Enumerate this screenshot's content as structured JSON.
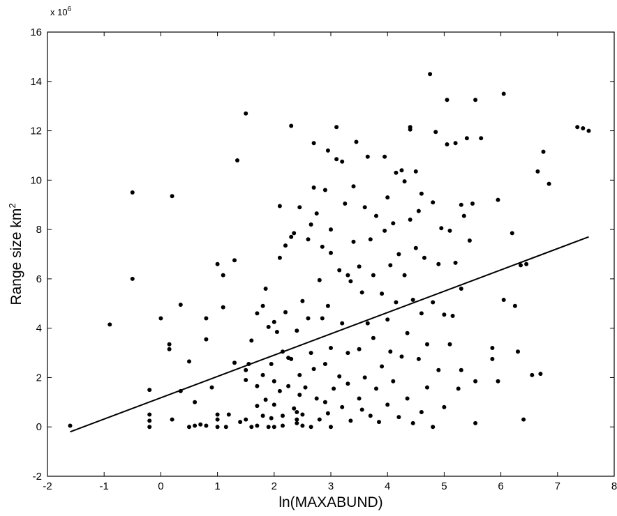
{
  "chart_data": {
    "type": "scatter",
    "title": "",
    "xlabel": "ln(MAXABUND)",
    "ylabel_main": "Range size km",
    "ylabel_sup": "2",
    "ylabel": "Range size km²",
    "y_multiplier_base": "x 10",
    "y_multiplier_exp": "6",
    "xlim": [
      -2,
      8
    ],
    "ylim": [
      -2,
      16
    ],
    "xticks": [
      -2,
      -1,
      0,
      1,
      2,
      3,
      4,
      5,
      6,
      7,
      8
    ],
    "yticks": [
      -2,
      0,
      2,
      4,
      6,
      8,
      10,
      12,
      14,
      16
    ],
    "grid": false,
    "legend": "none",
    "marker_color": "#000000",
    "regression_line": {
      "x": [
        -1.6,
        7.55
      ],
      "y": [
        -0.2,
        7.7
      ]
    },
    "points": [
      [
        -1.6,
        0.05
      ],
      [
        -0.9,
        4.15
      ],
      [
        -0.5,
        9.5
      ],
      [
        -0.5,
        6.0
      ],
      [
        -0.2,
        1.5
      ],
      [
        -0.2,
        0.5
      ],
      [
        -0.2,
        0.25
      ],
      [
        -0.2,
        0.0
      ],
      [
        0.0,
        4.4
      ],
      [
        0.15,
        3.35
      ],
      [
        0.15,
        3.15
      ],
      [
        0.2,
        9.35
      ],
      [
        0.2,
        0.3
      ],
      [
        0.35,
        4.95
      ],
      [
        0.35,
        1.45
      ],
      [
        0.5,
        2.65
      ],
      [
        0.5,
        0.0
      ],
      [
        0.6,
        0.05
      ],
      [
        0.6,
        1.0
      ],
      [
        0.7,
        0.1
      ],
      [
        0.8,
        3.55
      ],
      [
        0.8,
        4.4
      ],
      [
        0.8,
        0.05
      ],
      [
        0.9,
        1.6
      ],
      [
        1.0,
        6.6
      ],
      [
        1.0,
        0.5
      ],
      [
        1.0,
        0.3
      ],
      [
        1.0,
        0.0
      ],
      [
        1.1,
        6.15
      ],
      [
        1.1,
        4.85
      ],
      [
        1.15,
        0.0
      ],
      [
        1.2,
        0.5
      ],
      [
        1.3,
        2.6
      ],
      [
        1.3,
        6.75
      ],
      [
        1.35,
        10.8
      ],
      [
        1.4,
        0.2
      ],
      [
        1.5,
        0.3
      ],
      [
        1.5,
        12.7
      ],
      [
        1.5,
        2.3
      ],
      [
        1.5,
        1.9
      ],
      [
        1.55,
        2.55
      ],
      [
        1.6,
        0.0
      ],
      [
        1.6,
        3.5
      ],
      [
        1.7,
        0.85
      ],
      [
        1.7,
        1.65
      ],
      [
        1.7,
        4.6
      ],
      [
        1.7,
        0.05
      ],
      [
        1.8,
        4.9
      ],
      [
        1.8,
        2.1
      ],
      [
        1.8,
        0.45
      ],
      [
        1.85,
        1.1
      ],
      [
        1.85,
        5.6
      ],
      [
        1.9,
        0.0
      ],
      [
        1.9,
        4.05
      ],
      [
        1.95,
        0.35
      ],
      [
        1.95,
        2.55
      ],
      [
        2.0,
        1.85
      ],
      [
        2.0,
        0.9
      ],
      [
        2.0,
        0.0
      ],
      [
        2.0,
        4.25
      ],
      [
        2.05,
        3.85
      ],
      [
        2.1,
        8.95
      ],
      [
        2.1,
        6.85
      ],
      [
        2.1,
        1.45
      ],
      [
        2.15,
        3.05
      ],
      [
        2.15,
        0.45
      ],
      [
        2.15,
        0.05
      ],
      [
        2.2,
        7.35
      ],
      [
        2.2,
        4.65
      ],
      [
        2.25,
        2.8
      ],
      [
        2.25,
        1.65
      ],
      [
        2.3,
        7.7
      ],
      [
        2.3,
        12.2
      ],
      [
        2.3,
        2.75
      ],
      [
        2.35,
        7.85
      ],
      [
        2.35,
        0.75
      ],
      [
        2.4,
        0.3
      ],
      [
        2.4,
        0.15
      ],
      [
        2.4,
        3.9
      ],
      [
        2.4,
        0.6
      ],
      [
        2.45,
        2.1
      ],
      [
        2.45,
        1.3
      ],
      [
        2.45,
        8.9
      ],
      [
        2.5,
        0.05
      ],
      [
        2.5,
        5.1
      ],
      [
        2.5,
        0.5
      ],
      [
        2.55,
        1.6
      ],
      [
        2.6,
        7.6
      ],
      [
        2.6,
        4.4
      ],
      [
        2.65,
        8.2
      ],
      [
        2.65,
        3.0
      ],
      [
        2.65,
        0.0
      ],
      [
        2.7,
        11.5
      ],
      [
        2.7,
        9.7
      ],
      [
        2.7,
        2.35
      ],
      [
        2.75,
        8.65
      ],
      [
        2.75,
        1.15
      ],
      [
        2.8,
        5.95
      ],
      [
        2.8,
        0.3
      ],
      [
        2.85,
        7.3
      ],
      [
        2.85,
        4.4
      ],
      [
        2.9,
        9.6
      ],
      [
        2.9,
        1.0
      ],
      [
        2.9,
        2.55
      ],
      [
        2.95,
        11.2
      ],
      [
        2.95,
        4.9
      ],
      [
        2.95,
        0.55
      ],
      [
        3.0,
        8.0
      ],
      [
        3.0,
        7.05
      ],
      [
        3.0,
        3.2
      ],
      [
        3.0,
        0.0
      ],
      [
        3.05,
        1.55
      ],
      [
        3.1,
        10.85
      ],
      [
        3.1,
        12.15
      ],
      [
        3.15,
        6.35
      ],
      [
        3.15,
        2.05
      ],
      [
        3.2,
        10.75
      ],
      [
        3.2,
        4.2
      ],
      [
        3.2,
        0.8
      ],
      [
        3.25,
        9.05
      ],
      [
        3.3,
        6.15
      ],
      [
        3.3,
        1.75
      ],
      [
        3.3,
        3.0
      ],
      [
        3.35,
        5.9
      ],
      [
        3.35,
        0.25
      ],
      [
        3.4,
        9.75
      ],
      [
        3.4,
        7.5
      ],
      [
        3.45,
        11.55
      ],
      [
        3.5,
        6.5
      ],
      [
        3.5,
        3.15
      ],
      [
        3.5,
        1.15
      ],
      [
        3.55,
        0.7
      ],
      [
        3.55,
        5.45
      ],
      [
        3.6,
        8.9
      ],
      [
        3.6,
        2.0
      ],
      [
        3.65,
        10.95
      ],
      [
        3.65,
        4.2
      ],
      [
        3.7,
        7.6
      ],
      [
        3.7,
        0.45
      ],
      [
        3.75,
        6.15
      ],
      [
        3.75,
        3.6
      ],
      [
        3.8,
        8.55
      ],
      [
        3.8,
        1.55
      ],
      [
        3.85,
        0.2
      ],
      [
        3.9,
        5.4
      ],
      [
        3.9,
        2.45
      ],
      [
        3.95,
        10.95
      ],
      [
        3.95,
        7.95
      ],
      [
        4.0,
        9.3
      ],
      [
        4.0,
        4.35
      ],
      [
        4.0,
        0.9
      ],
      [
        4.05,
        6.55
      ],
      [
        4.05,
        3.05
      ],
      [
        4.1,
        8.25
      ],
      [
        4.1,
        1.85
      ],
      [
        4.15,
        10.3
      ],
      [
        4.15,
        5.05
      ],
      [
        4.2,
        7.0
      ],
      [
        4.2,
        0.4
      ],
      [
        4.25,
        10.4
      ],
      [
        4.25,
        2.85
      ],
      [
        4.3,
        9.95
      ],
      [
        4.3,
        6.15
      ],
      [
        4.35,
        3.8
      ],
      [
        4.35,
        1.15
      ],
      [
        4.4,
        12.15
      ],
      [
        4.4,
        12.05
      ],
      [
        4.4,
        8.4
      ],
      [
        4.45,
        5.15
      ],
      [
        4.45,
        0.15
      ],
      [
        4.5,
        10.35
      ],
      [
        4.5,
        7.25
      ],
      [
        4.55,
        2.75
      ],
      [
        4.55,
        8.75
      ],
      [
        4.6,
        9.45
      ],
      [
        4.6,
        4.6
      ],
      [
        4.6,
        0.6
      ],
      [
        4.65,
        6.85
      ],
      [
        4.7,
        3.35
      ],
      [
        4.7,
        1.6
      ],
      [
        4.75,
        14.3
      ],
      [
        4.8,
        9.1
      ],
      [
        4.8,
        5.05
      ],
      [
        4.8,
        0.0
      ],
      [
        4.85,
        11.95
      ],
      [
        4.9,
        6.6
      ],
      [
        4.9,
        2.3
      ],
      [
        4.95,
        8.05
      ],
      [
        5.0,
        4.55
      ],
      [
        5.0,
        0.8
      ],
      [
        5.05,
        13.25
      ],
      [
        5.05,
        11.45
      ],
      [
        5.1,
        7.95
      ],
      [
        5.1,
        3.35
      ],
      [
        5.15,
        4.5
      ],
      [
        5.2,
        6.65
      ],
      [
        5.2,
        11.5
      ],
      [
        5.25,
        1.55
      ],
      [
        5.3,
        9.0
      ],
      [
        5.3,
        5.6
      ],
      [
        5.3,
        2.3
      ],
      [
        5.35,
        8.55
      ],
      [
        5.4,
        11.7
      ],
      [
        5.45,
        7.55
      ],
      [
        5.5,
        9.05
      ],
      [
        5.55,
        13.25
      ],
      [
        5.55,
        1.85
      ],
      [
        5.55,
        0.15
      ],
      [
        5.65,
        11.7
      ],
      [
        5.85,
        2.75
      ],
      [
        5.85,
        3.2
      ],
      [
        5.95,
        9.2
      ],
      [
        5.95,
        1.85
      ],
      [
        6.05,
        13.5
      ],
      [
        6.05,
        5.15
      ],
      [
        6.2,
        7.85
      ],
      [
        6.25,
        4.9
      ],
      [
        6.3,
        3.05
      ],
      [
        6.35,
        6.55
      ],
      [
        6.4,
        0.3
      ],
      [
        6.45,
        6.6
      ],
      [
        6.55,
        2.1
      ],
      [
        6.65,
        10.35
      ],
      [
        6.7,
        2.15
      ],
      [
        6.75,
        11.15
      ],
      [
        6.85,
        9.85
      ],
      [
        7.35,
        12.15
      ],
      [
        7.45,
        12.1
      ],
      [
        7.55,
        12.0
      ]
    ]
  }
}
